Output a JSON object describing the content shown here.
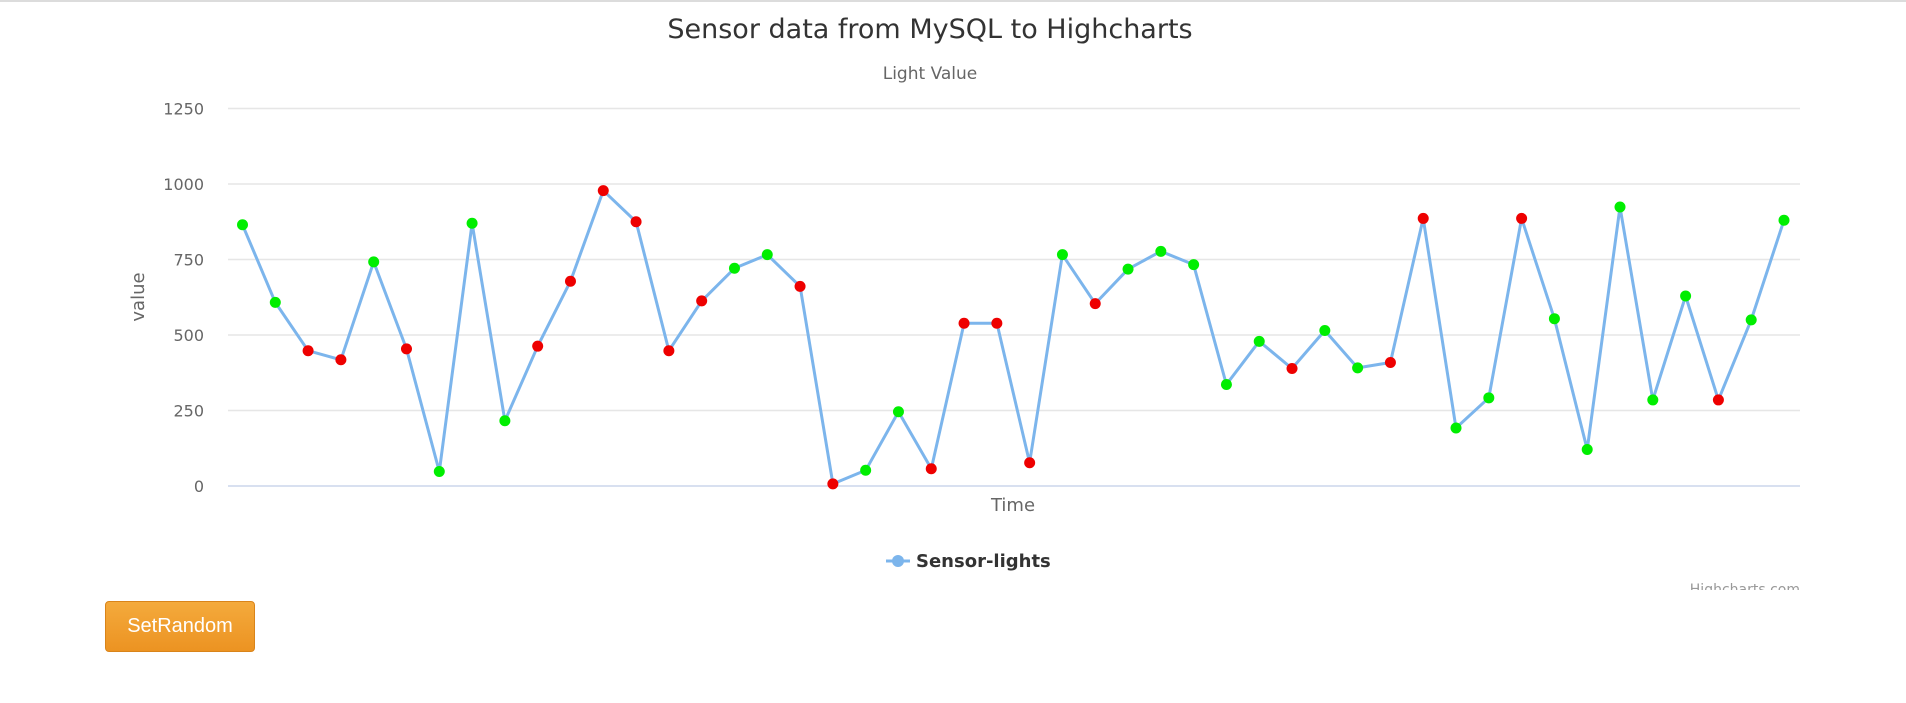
{
  "chart_data": {
    "type": "line",
    "title": "Sensor data from MySQL to Highcharts",
    "subtitle": "Light Value",
    "xlabel": "Time",
    "ylabel": "value",
    "ylim": [
      0,
      1250
    ],
    "yticks": [
      0,
      250,
      500,
      750,
      1000,
      1250
    ],
    "grid": true,
    "legend_position": "bottom-center",
    "series": [
      {
        "name": "Sensor-lights",
        "color": "#7cb5ec",
        "values": [
          865,
          608,
          448,
          418,
          742,
          454,
          48,
          870,
          216,
          463,
          678,
          978,
          875,
          448,
          613,
          721,
          766,
          661,
          7,
          52,
          246,
          57,
          539,
          539,
          77,
          766,
          604,
          718,
          777,
          733,
          336,
          479,
          389,
          515,
          391,
          409,
          886,
          192,
          292,
          886,
          554,
          121,
          924,
          285,
          629,
          285,
          550,
          880
        ],
        "marker_status": [
          "green",
          "green",
          "red",
          "red",
          "green",
          "red",
          "green",
          "green",
          "green",
          "red",
          "red",
          "red",
          "red",
          "red",
          "red",
          "green",
          "green",
          "red",
          "red",
          "green",
          "green",
          "red",
          "red",
          "red",
          "red",
          "green",
          "red",
          "green",
          "green",
          "green",
          "green",
          "green",
          "red",
          "green",
          "green",
          "red",
          "red",
          "green",
          "green",
          "red",
          "green",
          "green",
          "green",
          "green",
          "green",
          "red",
          "green",
          "green"
        ]
      }
    ]
  },
  "marker_colors": {
    "green": "#00ee00",
    "red": "#ee0000"
  },
  "credits": "Highcharts.com",
  "controls": {
    "set_random_label": "SetRandom"
  }
}
